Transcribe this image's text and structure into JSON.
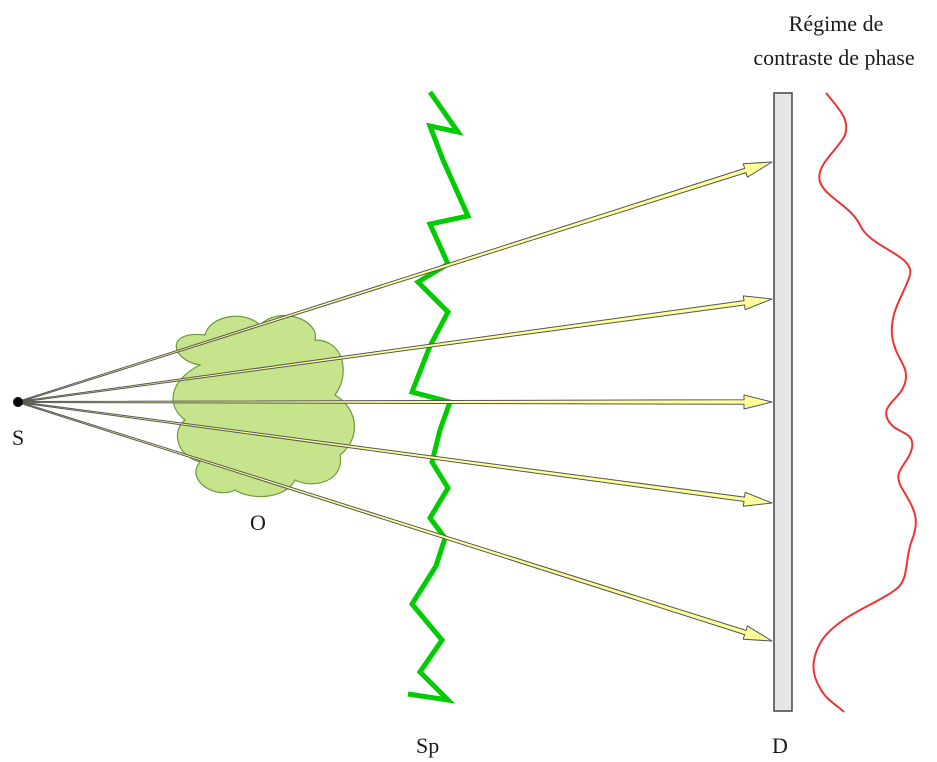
{
  "title": {
    "line1": "Régime de",
    "line2": "contraste de phase"
  },
  "labels": {
    "source": "S",
    "object": "O",
    "speckle": "Sp",
    "detector": "D"
  },
  "colors": {
    "ray_fill": "#ffff99",
    "ray_stroke": "#555555",
    "object_fill": "#c6e48b",
    "object_stroke": "#6a9a3a",
    "wavefront": "#00cc00",
    "detector_fill": "#e6e6e6",
    "detector_stroke": "#444444",
    "intensity_profile": "#ee3333",
    "source_point": "#000000"
  },
  "ray_count": 5
}
